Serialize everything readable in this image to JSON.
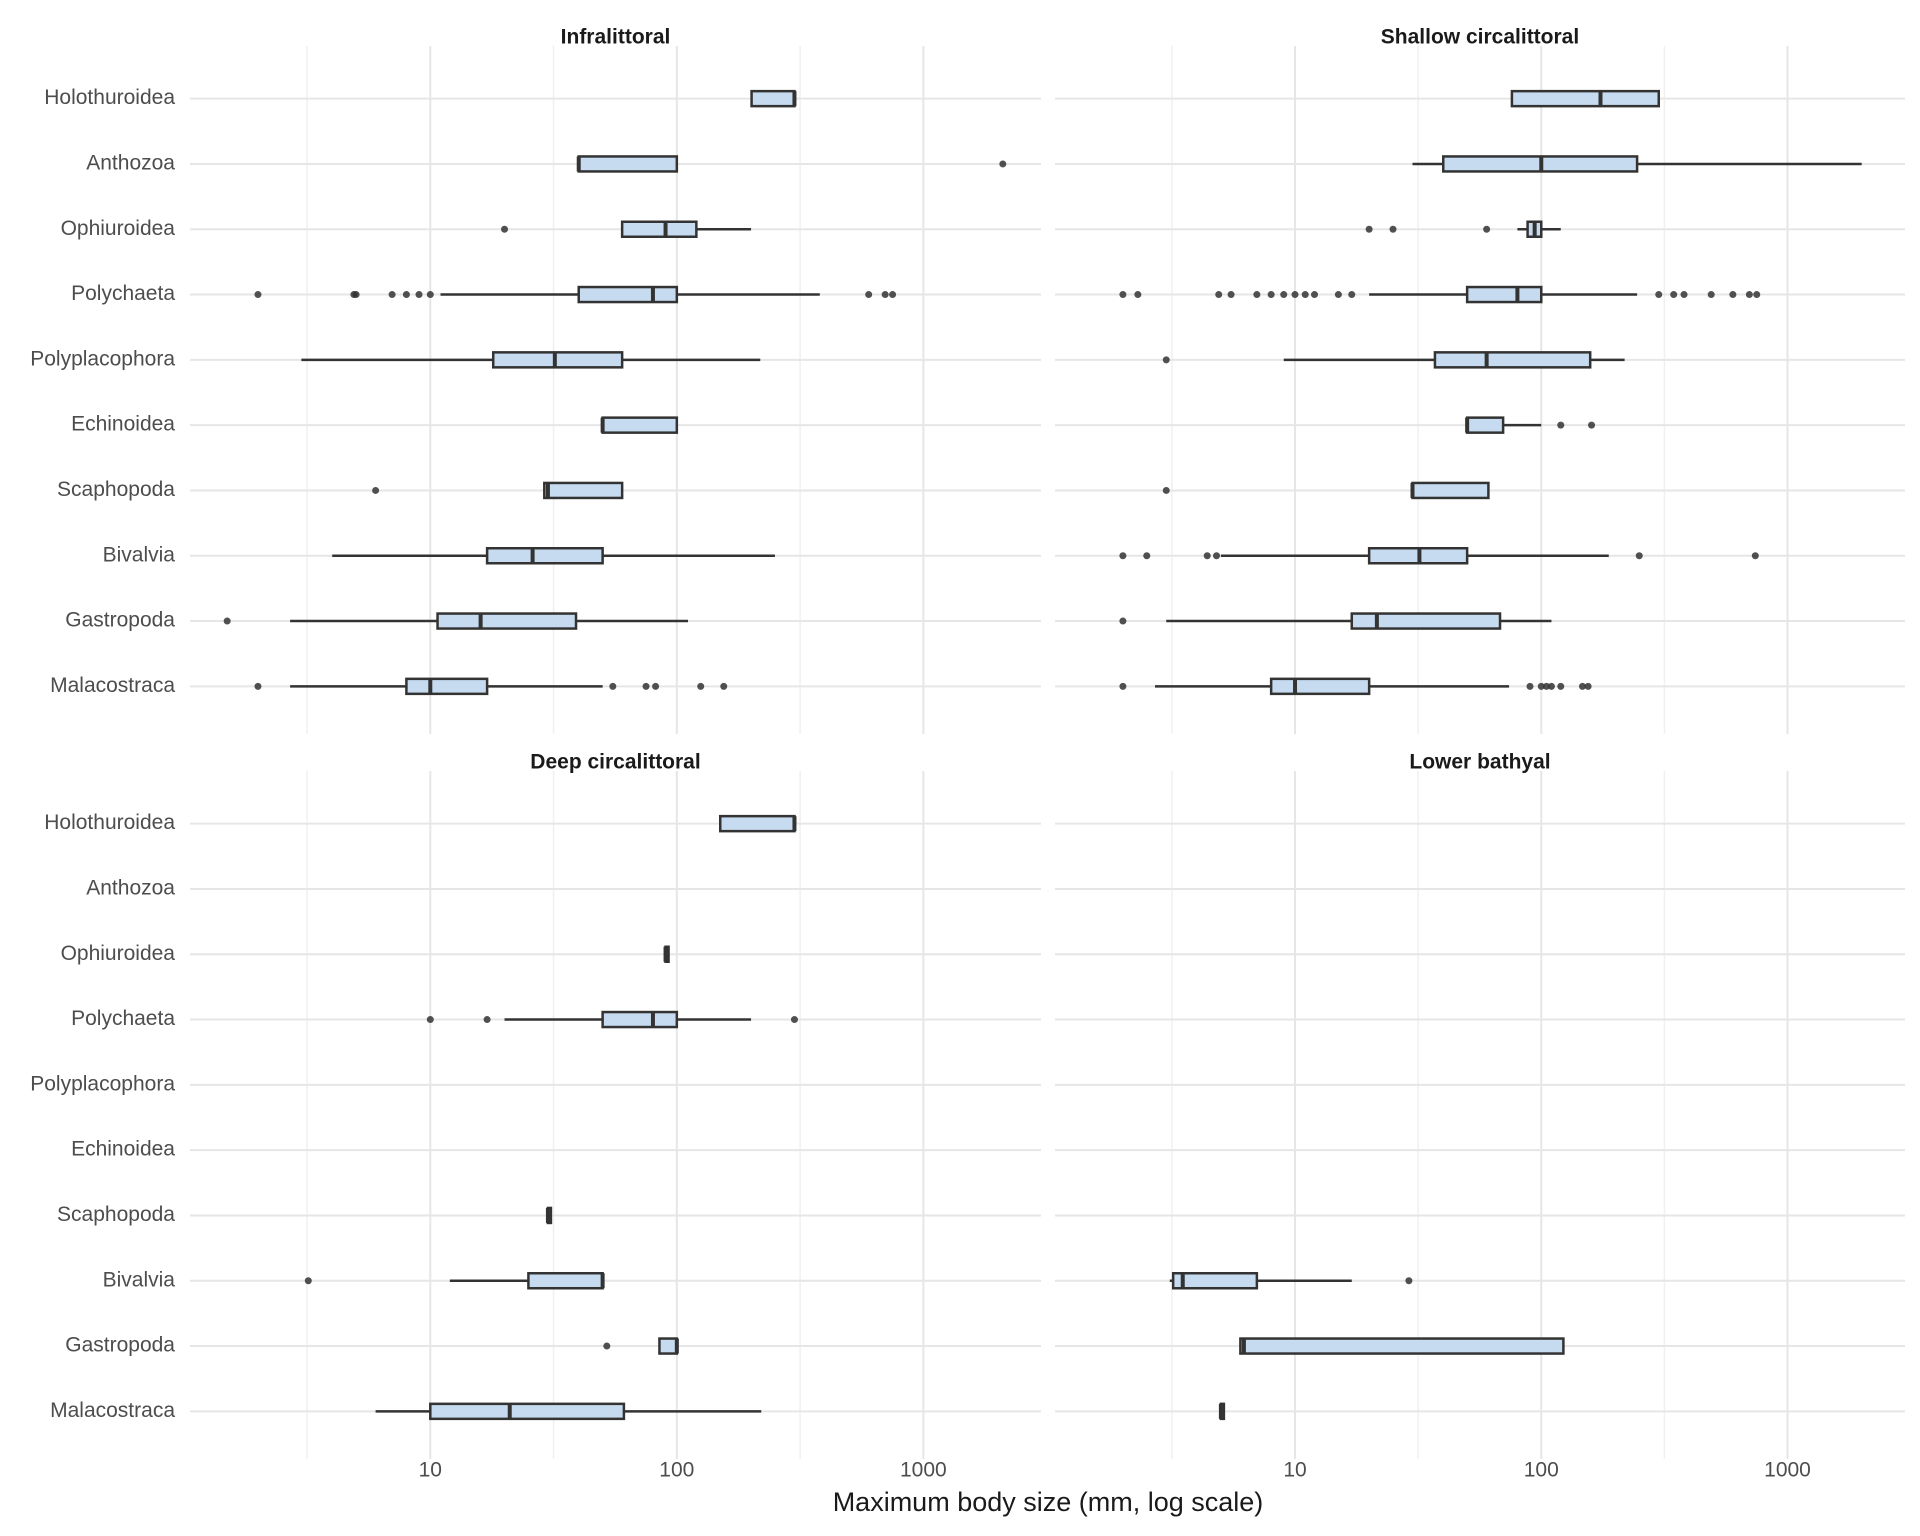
{
  "x_label": "Maximum body size (mm, log scale)",
  "categories": [
    "Holothuroidea",
    "Anthozoa",
    "Ophiuroidea",
    "Polychaeta",
    "Polyplacophora",
    "Echinoidea",
    "Scaphopoda",
    "Bivalvia",
    "Gastropoda",
    "Malacostraca"
  ],
  "x_scale": "log",
  "xlim": [
    1.06,
    3000
  ],
  "xticks": [
    10,
    100,
    1000
  ],
  "xminor": [
    3.162,
    31.62,
    316.2
  ],
  "box_color": "#c6dbef",
  "line_color": "#333333",
  "chart_data": [
    {
      "type": "boxplot",
      "title": "Infralittoral",
      "boxes": [
        {
          "min": 201,
          "q1": 201,
          "median": 300,
          "q3": 300,
          "max": 300,
          "outliers": []
        },
        {
          "min": 40,
          "q1": 40,
          "median": 40,
          "q3": 100,
          "max": 100,
          "outliers": [
            2100
          ]
        },
        {
          "min": 60,
          "q1": 60,
          "median": 90,
          "q3": 120,
          "max": 200,
          "outliers": [
            20
          ]
        },
        {
          "min": 11,
          "q1": 40,
          "median": 80,
          "q3": 100,
          "max": 380,
          "outliers": [
            2,
            4.9,
            5,
            7,
            8,
            9,
            10,
            600,
            700,
            750
          ]
        },
        {
          "min": 3,
          "q1": 18,
          "median": 32,
          "q3": 60,
          "max": 218,
          "outliers": []
        },
        {
          "min": 50,
          "q1": 50,
          "median": 50,
          "q3": 100,
          "max": 100,
          "outliers": []
        },
        {
          "min": 29,
          "q1": 29,
          "median": 30,
          "q3": 60,
          "max": 60,
          "outliers": [
            6
          ]
        },
        {
          "min": 4,
          "q1": 17,
          "median": 26,
          "q3": 50,
          "max": 250,
          "outliers": []
        },
        {
          "min": 2.7,
          "q1": 10.7,
          "median": 16,
          "q3": 39,
          "max": 111,
          "outliers": [
            1.5
          ]
        },
        {
          "min": 2.7,
          "q1": 8,
          "median": 10,
          "q3": 17,
          "max": 50,
          "outliers": [
            2,
            55,
            75,
            82,
            125,
            155
          ]
        }
      ]
    },
    {
      "type": "boxplot",
      "title": "Shallow circalittoral",
      "boxes": [
        {
          "min": 76,
          "q1": 76,
          "median": 174,
          "q3": 300,
          "max": 300,
          "outliers": []
        },
        {
          "min": 30,
          "q1": 40,
          "median": 100,
          "q3": 245,
          "max": 2000,
          "outliers": []
        },
        {
          "min": 80,
          "q1": 88,
          "median": 94,
          "q3": 100,
          "max": 120,
          "outliers": [
            20,
            25,
            60
          ]
        },
        {
          "min": 20,
          "q1": 50,
          "median": 80,
          "q3": 100,
          "max": 245,
          "outliers": [
            2,
            2.3,
            4.9,
            5.5,
            7,
            8,
            9,
            10,
            11,
            12,
            15,
            17,
            300,
            345,
            380,
            490,
            600,
            700,
            750
          ]
        },
        {
          "min": 9,
          "q1": 37,
          "median": 60,
          "q3": 158,
          "max": 218,
          "outliers": [
            3
          ]
        },
        {
          "min": 50,
          "q1": 50,
          "median": 50,
          "q3": 70,
          "max": 100,
          "outliers": [
            120,
            160
          ]
        },
        {
          "min": 30,
          "q1": 30,
          "median": 30,
          "q3": 61,
          "max": 61,
          "outliers": [
            3
          ]
        },
        {
          "min": 5,
          "q1": 20,
          "median": 32,
          "q3": 50,
          "max": 188,
          "outliers": [
            2,
            2.5,
            4.4,
            4.8,
            250,
            740
          ]
        },
        {
          "min": 3,
          "q1": 17,
          "median": 21.5,
          "q3": 68,
          "max": 110,
          "outliers": [
            2
          ]
        },
        {
          "min": 2.7,
          "q1": 8,
          "median": 10,
          "q3": 20,
          "max": 74,
          "outliers": [
            2,
            90,
            100,
            105,
            110,
            120,
            147,
            155
          ]
        }
      ]
    },
    {
      "type": "boxplot",
      "title": "Deep circalittoral",
      "boxes": [
        {
          "min": 150,
          "q1": 150,
          "median": 300,
          "q3": 300,
          "max": 300,
          "outliers": []
        },
        null,
        {
          "min": 90,
          "q1": 90,
          "median": 90,
          "q3": 90,
          "max": 90,
          "outliers": []
        },
        {
          "min": 20,
          "q1": 50,
          "median": 80,
          "q3": 100,
          "max": 200,
          "outliers": [
            10,
            17,
            300
          ]
        },
        null,
        null,
        {
          "min": 30,
          "q1": 30,
          "median": 30,
          "q3": 30,
          "max": 30,
          "outliers": []
        },
        {
          "min": 12,
          "q1": 25,
          "median": 50,
          "q3": 50,
          "max": 50,
          "outliers": [
            3.2
          ]
        },
        {
          "min": 85,
          "q1": 85,
          "median": 100,
          "q3": 100,
          "max": 100,
          "outliers": [
            52
          ]
        },
        {
          "min": 6,
          "q1": 10,
          "median": 21,
          "q3": 61,
          "max": 220,
          "outliers": []
        }
      ]
    },
    {
      "type": "boxplot",
      "title": "Lower bathyal",
      "boxes": [
        null,
        null,
        null,
        null,
        null,
        null,
        null,
        {
          "min": 3.1,
          "q1": 3.2,
          "median": 3.5,
          "q3": 7,
          "max": 17,
          "outliers": [
            29
          ]
        },
        {
          "min": 6,
          "q1": 6,
          "median": 6.2,
          "q3": 123,
          "max": 123,
          "outliers": []
        },
        {
          "min": 5,
          "q1": 5,
          "median": 5,
          "q3": 5,
          "max": 5,
          "outliers": []
        }
      ]
    }
  ]
}
